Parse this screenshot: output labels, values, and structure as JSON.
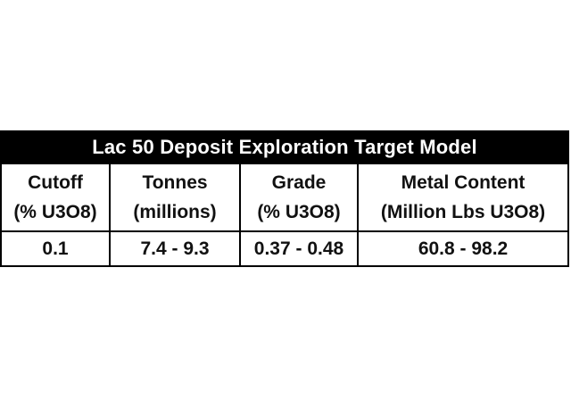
{
  "table": {
    "title": "Lac 50 Deposit Exploration Target Model",
    "columns": [
      {
        "line1": "Cutoff",
        "line2": "(% U3O8)"
      },
      {
        "line1": "Tonnes",
        "line2": "(millions)"
      },
      {
        "line1": "Grade",
        "line2": "(% U3O8)"
      },
      {
        "line1": "Metal Content",
        "line2": "(Million Lbs U3O8)"
      }
    ],
    "rows": [
      [
        "0.1",
        "7.4 - 9.3",
        "0.37 - 0.48",
        "60.8 - 98.2"
      ]
    ]
  }
}
